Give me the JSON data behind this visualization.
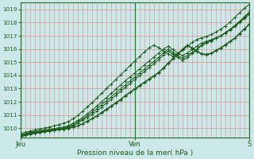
{
  "xlabel": "Pression niveau de la mer( hPa )",
  "bg_color": "#cce8e8",
  "grid_color_h": "#d8a0a0",
  "grid_color_v": "#d8a0a0",
  "line_color": "#1a5c1a",
  "tick_label_color": "#1a5c1a",
  "axis_label_color": "#1a5c1a",
  "ymin": 1009.3,
  "ymax": 1019.5,
  "yticks": [
    1010,
    1011,
    1012,
    1013,
    1014,
    1015,
    1016,
    1017,
    1018,
    1019
  ],
  "x_day_labels": [
    [
      "Jeu",
      0
    ],
    [
      "Ven",
      24
    ],
    [
      "S",
      48
    ]
  ],
  "num_points": 49,
  "series": [
    [
      1009.4,
      1009.5,
      1009.6,
      1009.65,
      1009.7,
      1009.75,
      1009.8,
      1009.85,
      1009.9,
      1009.95,
      1010.0,
      1010.1,
      1010.2,
      1010.35,
      1010.55,
      1010.75,
      1010.95,
      1011.2,
      1011.45,
      1011.7,
      1011.95,
      1012.2,
      1012.5,
      1012.75,
      1013.0,
      1013.25,
      1013.5,
      1013.75,
      1014.0,
      1014.25,
      1014.6,
      1014.95,
      1015.3,
      1015.65,
      1016.0,
      1016.3,
      1016.1,
      1015.85,
      1015.65,
      1015.6,
      1015.7,
      1015.9,
      1016.1,
      1016.35,
      1016.6,
      1016.85,
      1017.2,
      1017.55,
      1017.9
    ],
    [
      1009.35,
      1009.45,
      1009.55,
      1009.62,
      1009.68,
      1009.73,
      1009.78,
      1009.83,
      1009.88,
      1009.93,
      1009.98,
      1010.08,
      1010.18,
      1010.33,
      1010.52,
      1010.72,
      1010.92,
      1011.15,
      1011.4,
      1011.65,
      1011.9,
      1012.15,
      1012.45,
      1012.7,
      1012.95,
      1013.2,
      1013.45,
      1013.7,
      1013.95,
      1014.2,
      1014.55,
      1014.9,
      1015.25,
      1015.6,
      1015.95,
      1016.25,
      1016.05,
      1015.8,
      1015.6,
      1015.55,
      1015.65,
      1015.85,
      1016.05,
      1016.3,
      1016.55,
      1016.8,
      1017.15,
      1017.5,
      1017.85
    ],
    [
      1009.5,
      1009.6,
      1009.7,
      1009.77,
      1009.83,
      1009.88,
      1009.93,
      1009.98,
      1010.04,
      1010.1,
      1010.2,
      1010.38,
      1010.6,
      1010.82,
      1011.1,
      1011.38,
      1011.68,
      1012.0,
      1012.32,
      1012.64,
      1012.96,
      1013.28,
      1013.6,
      1013.9,
      1014.2,
      1014.5,
      1014.8,
      1015.1,
      1015.4,
      1015.7,
      1016.0,
      1016.2,
      1015.95,
      1015.7,
      1015.5,
      1015.7,
      1015.95,
      1016.2,
      1016.45,
      1016.6,
      1016.7,
      1016.85,
      1017.0,
      1017.2,
      1017.45,
      1017.7,
      1018.0,
      1018.3,
      1018.6
    ],
    [
      1009.4,
      1009.5,
      1009.6,
      1009.67,
      1009.73,
      1009.78,
      1009.83,
      1009.88,
      1009.93,
      1009.98,
      1010.08,
      1010.2,
      1010.38,
      1010.6,
      1010.82,
      1011.05,
      1011.3,
      1011.6,
      1011.9,
      1012.2,
      1012.5,
      1012.8,
      1013.1,
      1013.4,
      1013.7,
      1014.0,
      1014.3,
      1014.6,
      1014.9,
      1015.2,
      1015.55,
      1015.85,
      1015.6,
      1015.35,
      1015.15,
      1015.35,
      1015.65,
      1015.95,
      1016.25,
      1016.45,
      1016.6,
      1016.8,
      1017.0,
      1017.25,
      1017.5,
      1017.8,
      1018.1,
      1018.45,
      1018.8
    ],
    [
      1009.45,
      1009.55,
      1009.65,
      1009.72,
      1009.78,
      1009.83,
      1009.88,
      1009.93,
      1009.98,
      1010.03,
      1010.13,
      1010.28,
      1010.48,
      1010.7,
      1010.95,
      1011.2,
      1011.48,
      1011.78,
      1012.08,
      1012.38,
      1012.68,
      1012.98,
      1013.28,
      1013.58,
      1013.88,
      1014.18,
      1014.48,
      1014.78,
      1015.08,
      1015.38,
      1015.72,
      1016.0,
      1015.75,
      1015.5,
      1015.3,
      1015.5,
      1015.75,
      1016.0,
      1016.3,
      1016.5,
      1016.65,
      1016.82,
      1017.0,
      1017.22,
      1017.48,
      1017.75,
      1018.05,
      1018.38,
      1018.7
    ],
    [
      1009.6,
      1009.7,
      1009.8,
      1009.88,
      1009.95,
      1010.02,
      1010.1,
      1010.18,
      1010.28,
      1010.38,
      1010.52,
      1010.72,
      1010.98,
      1011.3,
      1011.62,
      1011.95,
      1012.3,
      1012.65,
      1013.0,
      1013.35,
      1013.7,
      1014.05,
      1014.4,
      1014.75,
      1015.1,
      1015.45,
      1015.78,
      1016.1,
      1016.3,
      1016.1,
      1015.85,
      1015.62,
      1015.45,
      1015.62,
      1015.9,
      1016.2,
      1016.5,
      1016.72,
      1016.85,
      1016.95,
      1017.1,
      1017.28,
      1017.5,
      1017.75,
      1018.05,
      1018.4,
      1018.75,
      1019.1,
      1019.35
    ]
  ]
}
